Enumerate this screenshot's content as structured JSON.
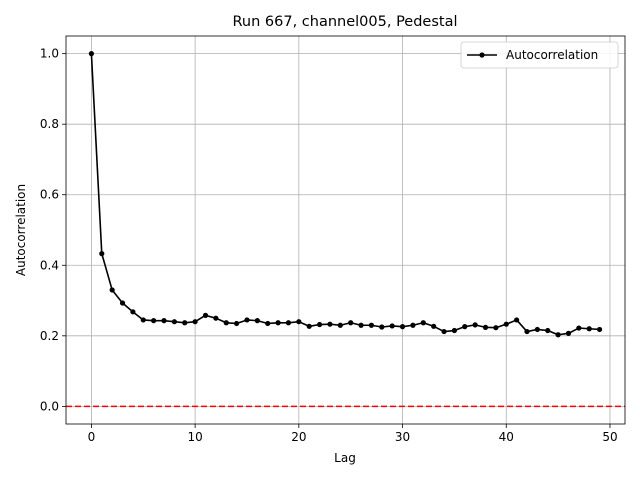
{
  "chart_data": {
    "type": "line",
    "title": "Run 667, channel005, Pedestal",
    "xlabel": "Lag",
    "ylabel": "Autocorrelation",
    "xlim": [
      -2.45,
      51.45
    ],
    "ylim": [
      -0.05,
      1.05
    ],
    "x_ticks": [
      0,
      10,
      20,
      30,
      40,
      50
    ],
    "y_ticks": [
      0.0,
      0.2,
      0.4,
      0.6,
      0.8,
      1.0
    ],
    "y_tick_labels": [
      "0.0",
      "0.2",
      "0.4",
      "0.6",
      "0.8",
      "1.0"
    ],
    "grid": true,
    "legend_position": "top-right",
    "series": [
      {
        "name": "Autocorrelation",
        "color": "#000000",
        "marker": "circle",
        "x": [
          0,
          1,
          2,
          3,
          4,
          5,
          6,
          7,
          8,
          9,
          10,
          11,
          12,
          13,
          14,
          15,
          16,
          17,
          18,
          19,
          20,
          21,
          22,
          23,
          24,
          25,
          26,
          27,
          28,
          29,
          30,
          31,
          32,
          33,
          34,
          35,
          36,
          37,
          38,
          39,
          40,
          41,
          42,
          43,
          44,
          45,
          46,
          47,
          48,
          49
        ],
        "values": [
          1.0,
          0.433,
          0.33,
          0.293,
          0.268,
          0.245,
          0.243,
          0.243,
          0.24,
          0.237,
          0.24,
          0.258,
          0.25,
          0.237,
          0.235,
          0.245,
          0.243,
          0.235,
          0.237,
          0.237,
          0.24,
          0.227,
          0.232,
          0.233,
          0.23,
          0.237,
          0.23,
          0.23,
          0.225,
          0.228,
          0.226,
          0.23,
          0.237,
          0.227,
          0.212,
          0.215,
          0.226,
          0.231,
          0.224,
          0.223,
          0.233,
          0.245,
          0.212,
          0.218,
          0.215,
          0.203,
          0.207,
          0.222,
          0.22,
          0.218
        ]
      }
    ],
    "reference_line": {
      "y": 0.0,
      "color": "#ff0000",
      "style": "dashed"
    }
  }
}
